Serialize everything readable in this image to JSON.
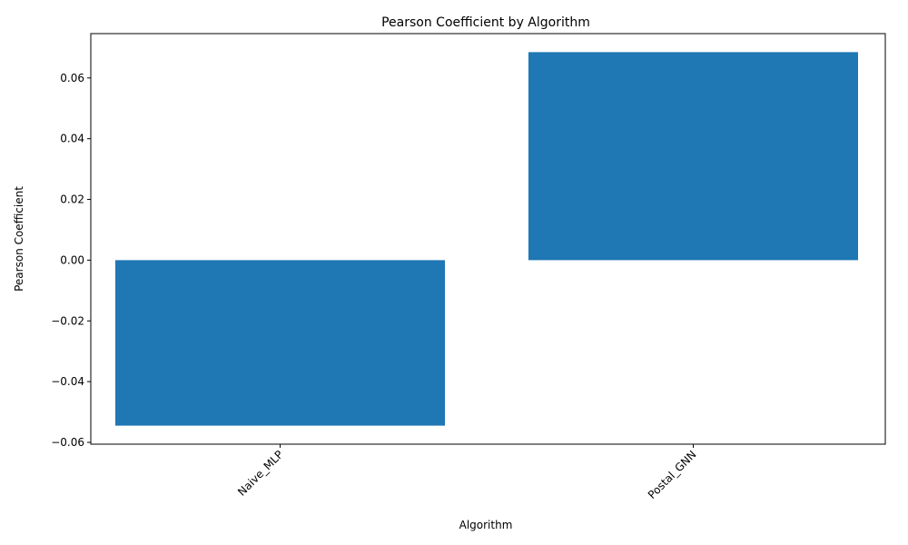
{
  "chart_data": {
    "type": "bar",
    "title": "Pearson Coefficient by Algorithm",
    "xlabel": "Algorithm",
    "ylabel": "Pearson Coefficient",
    "categories": [
      "Naive_MLP",
      "Postal_GNN"
    ],
    "values": [
      -0.0545,
      0.0685
    ],
    "ylim": [
      -0.0606,
      0.0746
    ],
    "yticks": [
      -0.06,
      -0.04,
      -0.02,
      0.0,
      0.02,
      0.04,
      0.06
    ],
    "ytick_labels": [
      "−0.06",
      "−0.04",
      "−0.02",
      "0.00",
      "0.02",
      "0.04",
      "0.06"
    ],
    "bar_color": "#1f77b4",
    "grid": false,
    "legend": "none",
    "xtick_rotation_deg": 45
  }
}
